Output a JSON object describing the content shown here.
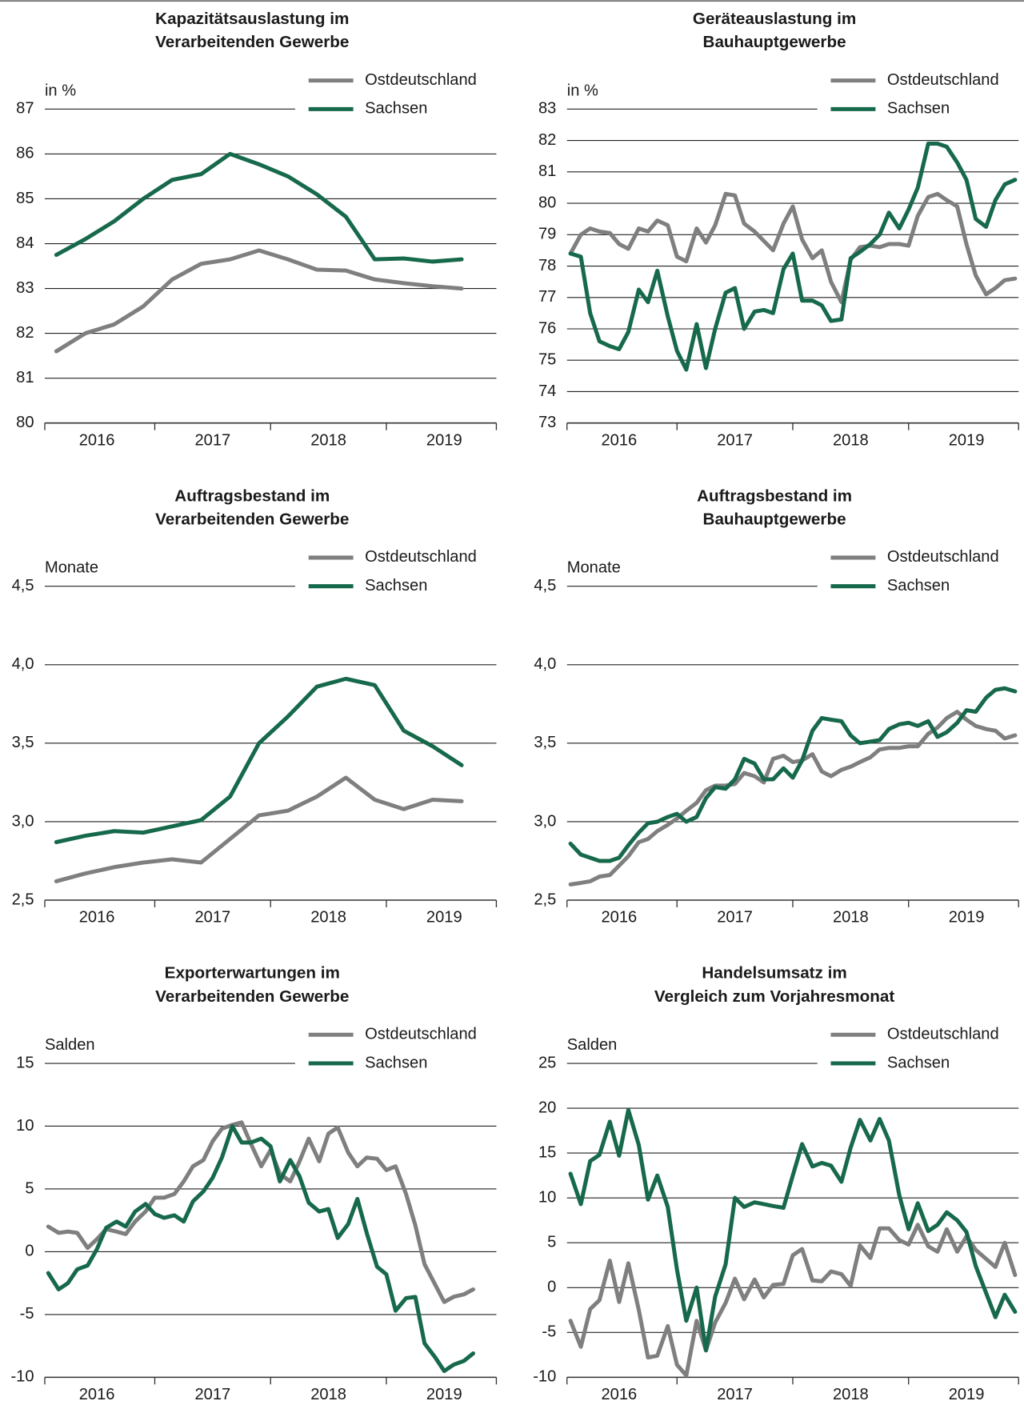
{
  "chart_data": [
    {
      "type": "line",
      "title": [
        "Kapazitätsauslastung im",
        "Verarbeitenden Gewerbe"
      ],
      "unit": "in %",
      "x": [
        2016.15,
        2016.4,
        2016.65,
        2016.9,
        2017.15,
        2017.4,
        2017.65,
        2017.9,
        2018.15,
        2018.4,
        2018.65,
        2018.9,
        2019.15,
        2019.4,
        2019.65
      ],
      "xlim": [
        2016.05,
        2019.95
      ],
      "xticks": [
        2017,
        2018,
        2019
      ],
      "xlabels": [
        {
          "value": 2016.5,
          "label": "2016"
        },
        {
          "value": 2017.5,
          "label": "2017"
        },
        {
          "value": 2018.5,
          "label": "2018"
        },
        {
          "value": 2019.5,
          "label": "2019"
        }
      ],
      "ylim": [
        80,
        87
      ],
      "yticks": [
        80,
        81,
        82,
        83,
        84,
        85,
        86,
        87
      ],
      "series": [
        {
          "name": "Ostdeutschland",
          "color": "#7f7f7f",
          "values": [
            81.6,
            82.0,
            82.2,
            82.6,
            83.2,
            83.55,
            83.65,
            83.85,
            83.65,
            83.42,
            83.4,
            83.2,
            83.12,
            83.05,
            83.0
          ]
        },
        {
          "name": "Sachsen",
          "color": "#16694a",
          "values": [
            83.75,
            84.1,
            84.5,
            85.0,
            85.42,
            85.55,
            86.0,
            85.77,
            85.5,
            85.1,
            84.6,
            83.65,
            83.67,
            83.6,
            83.65
          ]
        }
      ]
    },
    {
      "type": "line",
      "title": [
        "Geräteauslastung im",
        "Bauhauptgewerbe"
      ],
      "unit": "in %",
      "x": [
        2016.08,
        2016.17,
        2016.25,
        2016.33,
        2016.42,
        2016.5,
        2016.58,
        2016.67,
        2016.75,
        2016.83,
        2016.92,
        2017.0,
        2017.08,
        2017.17,
        2017.25,
        2017.33,
        2017.42,
        2017.5,
        2017.58,
        2017.67,
        2017.75,
        2017.83,
        2017.92,
        2018.0,
        2018.08,
        2018.17,
        2018.25,
        2018.33,
        2018.42,
        2018.5,
        2018.58,
        2018.67,
        2018.75,
        2018.83,
        2018.92,
        2019.0,
        2019.08,
        2019.17,
        2019.25,
        2019.33,
        2019.42,
        2019.5,
        2019.58,
        2019.67,
        2019.75,
        2019.83,
        2019.92
      ],
      "xlim": [
        2016.05,
        2019.95
      ],
      "xticks": [
        2017,
        2018,
        2019
      ],
      "xlabels": [
        {
          "value": 2016.5,
          "label": "2016"
        },
        {
          "value": 2017.5,
          "label": "2017"
        },
        {
          "value": 2018.5,
          "label": "2018"
        },
        {
          "value": 2019.5,
          "label": "2019"
        }
      ],
      "ylim": [
        73,
        83
      ],
      "yticks": [
        73,
        74,
        75,
        76,
        77,
        78,
        79,
        80,
        81,
        82,
        83
      ],
      "series": [
        {
          "name": "Ostdeutschland",
          "color": "#7f7f7f",
          "values": [
            78.4,
            79.0,
            79.2,
            79.1,
            79.05,
            78.7,
            78.55,
            79.2,
            79.1,
            79.45,
            79.3,
            78.3,
            78.15,
            79.2,
            78.75,
            79.3,
            80.3,
            80.25,
            79.35,
            79.1,
            78.8,
            78.5,
            79.35,
            79.9,
            78.85,
            78.25,
            78.5,
            77.5,
            76.85,
            78.2,
            78.6,
            78.65,
            78.6,
            78.7,
            78.7,
            78.65,
            79.6,
            80.2,
            80.3,
            80.1,
            79.9,
            78.7,
            77.7,
            77.1,
            77.3,
            77.55,
            77.6
          ]
        },
        {
          "name": "Sachsen",
          "color": "#16694a",
          "values": [
            78.4,
            78.3,
            76.5,
            75.6,
            75.45,
            75.35,
            75.9,
            77.25,
            76.85,
            77.85,
            76.4,
            75.3,
            74.7,
            76.15,
            74.75,
            76.0,
            77.15,
            77.3,
            76.0,
            76.55,
            76.6,
            76.5,
            77.9,
            78.4,
            76.9,
            76.9,
            76.75,
            76.25,
            76.3,
            78.25,
            78.45,
            78.7,
            79.0,
            79.7,
            79.2,
            79.8,
            80.5,
            81.9,
            81.9,
            81.8,
            81.3,
            80.75,
            79.5,
            79.25,
            80.1,
            80.6,
            80.75
          ]
        }
      ]
    },
    {
      "type": "line",
      "title": [
        "Auftragsbestand im",
        "Verarbeitenden Gewerbe"
      ],
      "unit": "Monate",
      "x": [
        2016.15,
        2016.4,
        2016.65,
        2016.9,
        2017.15,
        2017.4,
        2017.65,
        2017.9,
        2018.15,
        2018.4,
        2018.65,
        2018.9,
        2019.15,
        2019.4,
        2019.65
      ],
      "xlim": [
        2016.05,
        2019.95
      ],
      "xticks": [
        2017,
        2018,
        2019
      ],
      "xlabels": [
        {
          "value": 2016.5,
          "label": "2016"
        },
        {
          "value": 2017.5,
          "label": "2017"
        },
        {
          "value": 2018.5,
          "label": "2018"
        },
        {
          "value": 2019.5,
          "label": "2019"
        }
      ],
      "ylim": [
        2.5,
        4.5
      ],
      "yticks": [
        {
          "value": 2.5,
          "label": "2,5"
        },
        {
          "value": 3.0,
          "label": "3,0"
        },
        {
          "value": 3.5,
          "label": "3,5"
        },
        {
          "value": 4.0,
          "label": "4,0"
        },
        {
          "value": 4.5,
          "label": "4,5"
        }
      ],
      "series": [
        {
          "name": "Ostdeutschland",
          "color": "#7f7f7f",
          "values": [
            2.62,
            2.67,
            2.71,
            2.74,
            2.76,
            2.74,
            2.89,
            3.04,
            3.07,
            3.16,
            3.28,
            3.14,
            3.08,
            3.14,
            3.13
          ]
        },
        {
          "name": "Sachsen",
          "color": "#16694a",
          "values": [
            2.87,
            2.91,
            2.94,
            2.93,
            2.97,
            3.01,
            3.16,
            3.5,
            3.67,
            3.86,
            3.91,
            3.87,
            3.58,
            3.48,
            3.36
          ]
        }
      ]
    },
    {
      "type": "line",
      "title": [
        "Auftragsbestand im",
        "Bauhauptgewerbe"
      ],
      "unit": "Monate",
      "x": [
        2016.08,
        2016.17,
        2016.25,
        2016.33,
        2016.42,
        2016.5,
        2016.58,
        2016.67,
        2016.75,
        2016.83,
        2016.92,
        2017.0,
        2017.08,
        2017.17,
        2017.25,
        2017.33,
        2017.42,
        2017.5,
        2017.58,
        2017.67,
        2017.75,
        2017.83,
        2017.92,
        2018.0,
        2018.08,
        2018.17,
        2018.25,
        2018.33,
        2018.42,
        2018.5,
        2018.58,
        2018.67,
        2018.75,
        2018.83,
        2018.92,
        2019.0,
        2019.08,
        2019.17,
        2019.25,
        2019.33,
        2019.42,
        2019.5,
        2019.58,
        2019.67,
        2019.75,
        2019.83,
        2019.92
      ],
      "xlim": [
        2016.05,
        2019.95
      ],
      "xticks": [
        2017,
        2018,
        2019
      ],
      "xlabels": [
        {
          "value": 2016.5,
          "label": "2016"
        },
        {
          "value": 2017.5,
          "label": "2017"
        },
        {
          "value": 2018.5,
          "label": "2018"
        },
        {
          "value": 2019.5,
          "label": "2019"
        }
      ],
      "ylim": [
        2.5,
        4.5
      ],
      "yticks": [
        {
          "value": 2.5,
          "label": "2,5"
        },
        {
          "value": 3.0,
          "label": "3,0"
        },
        {
          "value": 3.5,
          "label": "3,5"
        },
        {
          "value": 4.0,
          "label": "4,0"
        },
        {
          "value": 4.5,
          "label": "4,5"
        }
      ],
      "series": [
        {
          "name": "Ostdeutschland",
          "color": "#7f7f7f",
          "values": [
            2.6,
            2.61,
            2.62,
            2.65,
            2.66,
            2.72,
            2.78,
            2.87,
            2.89,
            2.94,
            2.98,
            3.02,
            3.07,
            3.12,
            3.2,
            3.23,
            3.23,
            3.24,
            3.31,
            3.29,
            3.25,
            3.4,
            3.42,
            3.38,
            3.39,
            3.43,
            3.32,
            3.29,
            3.33,
            3.35,
            3.38,
            3.41,
            3.46,
            3.47,
            3.47,
            3.48,
            3.48,
            3.56,
            3.6,
            3.66,
            3.7,
            3.65,
            3.61,
            3.59,
            3.58,
            3.53,
            3.55
          ]
        },
        {
          "name": "Sachsen",
          "color": "#16694a",
          "values": [
            2.86,
            2.79,
            2.77,
            2.75,
            2.75,
            2.77,
            2.85,
            2.93,
            2.99,
            3.0,
            3.03,
            3.05,
            3.0,
            3.03,
            3.15,
            3.22,
            3.21,
            3.27,
            3.4,
            3.37,
            3.27,
            3.27,
            3.34,
            3.28,
            3.39,
            3.58,
            3.66,
            3.65,
            3.64,
            3.55,
            3.5,
            3.51,
            3.52,
            3.59,
            3.62,
            3.63,
            3.61,
            3.64,
            3.54,
            3.57,
            3.63,
            3.71,
            3.7,
            3.79,
            3.84,
            3.85,
            3.83
          ]
        }
      ]
    },
    {
      "type": "line",
      "title": [
        "Exporterwartungen im",
        "Verarbeitenden Gewerbe"
      ],
      "unit": "Salden",
      "x": [
        2016.08,
        2016.17,
        2016.25,
        2016.33,
        2016.42,
        2016.5,
        2016.58,
        2016.67,
        2016.75,
        2016.83,
        2016.92,
        2017.0,
        2017.08,
        2017.17,
        2017.25,
        2017.33,
        2017.42,
        2017.5,
        2017.58,
        2017.67,
        2017.75,
        2017.83,
        2017.92,
        2018.0,
        2018.08,
        2018.17,
        2018.25,
        2018.33,
        2018.42,
        2018.5,
        2018.58,
        2018.67,
        2018.75,
        2018.83,
        2018.92,
        2019.0,
        2019.08,
        2019.17,
        2019.25,
        2019.33,
        2019.42,
        2019.5,
        2019.58,
        2019.67,
        2019.75
      ],
      "xlim": [
        2016.05,
        2019.95
      ],
      "xticks": [
        2017,
        2018,
        2019
      ],
      "xlabels": [
        {
          "value": 2016.5,
          "label": "2016"
        },
        {
          "value": 2017.5,
          "label": "2017"
        },
        {
          "value": 2018.5,
          "label": "2018"
        },
        {
          "value": 2019.5,
          "label": "2019"
        }
      ],
      "ylim": [
        -10,
        15
      ],
      "yticks": [
        -10,
        -5,
        0,
        5,
        10,
        15
      ],
      "series": [
        {
          "name": "Ostdeutschland",
          "color": "#7f7f7f",
          "values": [
            2.0,
            1.5,
            1.6,
            1.5,
            0.3,
            1.0,
            1.8,
            1.6,
            1.4,
            2.4,
            3.2,
            4.3,
            4.3,
            4.6,
            5.6,
            6.8,
            7.3,
            8.8,
            9.8,
            10.1,
            10.3,
            8.6,
            6.8,
            8.1,
            6.2,
            5.6,
            7.2,
            9.0,
            7.2,
            9.4,
            9.9,
            7.9,
            6.8,
            7.5,
            7.4,
            6.5,
            6.8,
            4.6,
            2.1,
            -1.0,
            -2.6,
            -4.0,
            -3.6,
            -3.4,
            -3.0
          ]
        },
        {
          "name": "Sachsen",
          "color": "#16694a",
          "values": [
            -1.7,
            -3.0,
            -2.5,
            -1.4,
            -1.1,
            0.2,
            1.9,
            2.4,
            2.0,
            3.2,
            3.8,
            3.0,
            2.7,
            2.9,
            2.4,
            4.0,
            4.8,
            5.9,
            7.5,
            10.0,
            8.7,
            8.7,
            9.0,
            8.4,
            5.6,
            7.3,
            6.0,
            3.9,
            3.2,
            3.4,
            1.1,
            2.2,
            4.2,
            1.5,
            -1.2,
            -1.8,
            -4.7,
            -3.7,
            -3.6,
            -7.3,
            -8.4,
            -9.5,
            -9.0,
            -8.7,
            -8.1
          ]
        }
      ]
    },
    {
      "type": "line",
      "title": [
        "Handelsumsatz im",
        "Vergleich zum Vorjahresmonat"
      ],
      "unit": "Salden",
      "x": [
        2016.08,
        2016.17,
        2016.25,
        2016.33,
        2016.42,
        2016.5,
        2016.58,
        2016.67,
        2016.75,
        2016.83,
        2016.92,
        2017.0,
        2017.08,
        2017.17,
        2017.25,
        2017.33,
        2017.42,
        2017.5,
        2017.58,
        2017.67,
        2017.75,
        2017.83,
        2017.92,
        2018.0,
        2018.08,
        2018.17,
        2018.25,
        2018.33,
        2018.42,
        2018.5,
        2018.58,
        2018.67,
        2018.75,
        2018.83,
        2018.92,
        2019.0,
        2019.08,
        2019.17,
        2019.25,
        2019.33,
        2019.42,
        2019.5,
        2019.58,
        2019.67,
        2019.75,
        2019.83,
        2019.92
      ],
      "xlim": [
        2016.05,
        2019.95
      ],
      "xticks": [
        2017,
        2018,
        2019
      ],
      "xlabels": [
        {
          "value": 2016.5,
          "label": "2016"
        },
        {
          "value": 2017.5,
          "label": "2017"
        },
        {
          "value": 2018.5,
          "label": "2018"
        },
        {
          "value": 2019.5,
          "label": "2019"
        }
      ],
      "ylim": [
        -10,
        25
      ],
      "yticks": [
        -10,
        -5,
        0,
        5,
        10,
        15,
        20,
        25
      ],
      "series": [
        {
          "name": "Ostdeutschland",
          "color": "#7f7f7f",
          "values": [
            -3.7,
            -6.6,
            -2.4,
            -1.4,
            3.0,
            -1.6,
            2.7,
            -2.5,
            -7.8,
            -7.6,
            -4.3,
            -8.6,
            -9.8,
            -3.7,
            -7.0,
            -3.9,
            -1.7,
            1.0,
            -1.3,
            0.9,
            -1.1,
            0.3,
            0.4,
            3.6,
            4.3,
            0.8,
            0.7,
            1.8,
            1.5,
            0.2,
            4.7,
            3.3,
            6.6,
            6.6,
            5.3,
            4.8,
            7.0,
            4.6,
            4.0,
            6.5,
            4.0,
            5.7,
            4.2,
            3.2,
            2.3,
            5.0,
            1.4
          ]
        },
        {
          "name": "Sachsen",
          "color": "#16694a",
          "values": [
            12.7,
            9.3,
            14.1,
            14.8,
            18.5,
            14.7,
            19.8,
            15.9,
            9.8,
            12.5,
            9.0,
            2.0,
            -3.7,
            0.0,
            -7.0,
            -1.0,
            2.6,
            10.0,
            9.0,
            9.5,
            9.3,
            9.1,
            8.9,
            12.5,
            16.0,
            13.5,
            13.9,
            13.6,
            11.8,
            15.6,
            18.7,
            16.4,
            18.8,
            16.4,
            10.3,
            6.5,
            9.4,
            6.3,
            7.0,
            8.4,
            7.5,
            6.2,
            2.4,
            -0.6,
            -3.3,
            -0.8,
            -2.7
          ]
        }
      ]
    }
  ]
}
